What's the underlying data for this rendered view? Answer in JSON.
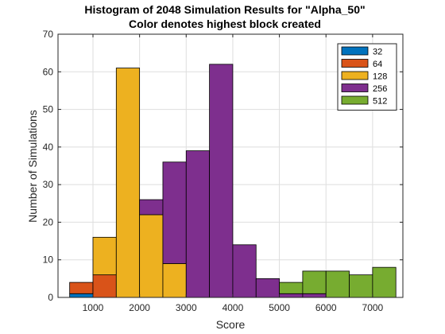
{
  "chart_data": {
    "type": "bar",
    "title": "Histogram of 2048 Simulation Results for \"Alpha_50\"",
    "subtitle": "Color denotes highest block created",
    "xlabel": "Score",
    "ylabel": "Number of Simulations",
    "xlim": [
      250,
      7650
    ],
    "ylim": [
      0,
      70
    ],
    "xticks": [
      1000,
      2000,
      3000,
      4000,
      5000,
      6000,
      7000
    ],
    "yticks": [
      0,
      10,
      20,
      30,
      40,
      50,
      60,
      70
    ],
    "grid": true,
    "stacked": true,
    "bin_width": 500,
    "bin_starts": [
      500,
      1000,
      1500,
      2000,
      2500,
      3000,
      3500,
      4000,
      4500,
      5000,
      5500,
      6000,
      6500,
      7000
    ],
    "legend": {
      "placement": "top-right"
    },
    "series": [
      {
        "name": "32",
        "color": "#0072BD",
        "values": [
          1,
          0,
          0,
          0,
          0,
          0,
          0,
          0,
          0,
          0,
          0,
          0,
          0,
          0
        ]
      },
      {
        "name": "64",
        "color": "#D95319",
        "values": [
          3,
          6,
          0,
          0,
          0,
          0,
          0,
          0,
          0,
          0,
          0,
          0,
          0,
          0
        ]
      },
      {
        "name": "128",
        "color": "#EDB120",
        "values": [
          0,
          10,
          61,
          22,
          9,
          0,
          0,
          0,
          0,
          0,
          0,
          0,
          0,
          0
        ]
      },
      {
        "name": "256",
        "color": "#7E2F8E",
        "values": [
          0,
          0,
          0,
          4,
          27,
          39,
          62,
          14,
          5,
          1,
          1,
          0,
          0,
          0
        ]
      },
      {
        "name": "512",
        "color": "#77AC30",
        "values": [
          0,
          0,
          0,
          0,
          0,
          0,
          0,
          0,
          0,
          3,
          6,
          7,
          6,
          8
        ]
      }
    ]
  }
}
